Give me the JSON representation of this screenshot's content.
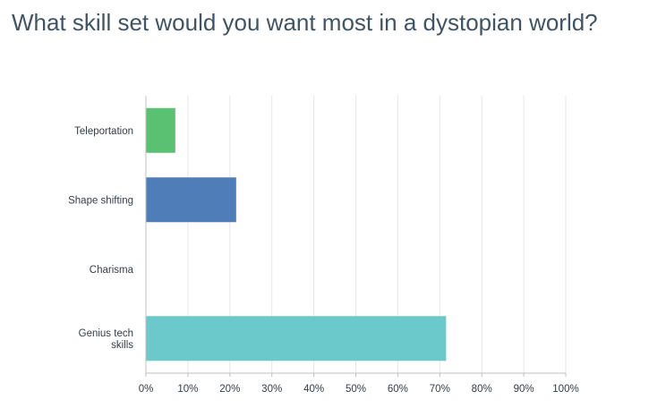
{
  "title": "What skill set would you want most in a dystopian world?",
  "chart_data": {
    "type": "bar",
    "orientation": "horizontal",
    "title": "What skill set would you want most in a dystopian world?",
    "categories": [
      "Teleportation",
      "Shape shifting",
      "Charisma",
      "Genius tech skills"
    ],
    "category_lines": [
      [
        "Teleportation"
      ],
      [
        "Shape shifting"
      ],
      [
        "Charisma"
      ],
      [
        "Genius tech",
        "skills"
      ]
    ],
    "values": [
      7,
      21.5,
      0,
      71.5
    ],
    "colors": [
      "#5ac172",
      "#4f7db7",
      "#f7c85a",
      "#6bc8cb"
    ],
    "xlim": [
      0,
      100
    ],
    "ticks": [
      0,
      10,
      20,
      30,
      40,
      50,
      60,
      70,
      80,
      90,
      100
    ],
    "tick_labels": [
      "0%",
      "10%",
      "20%",
      "30%",
      "40%",
      "50%",
      "60%",
      "70%",
      "80%",
      "90%",
      "100%"
    ],
    "grid": true
  }
}
